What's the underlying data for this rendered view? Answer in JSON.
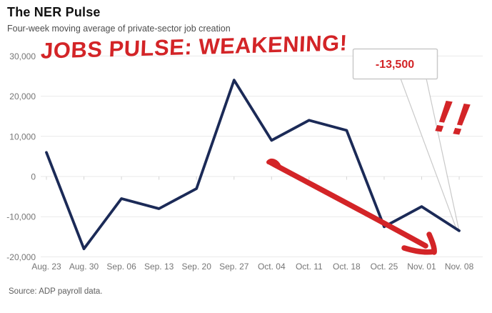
{
  "header": {
    "title": "The NER Pulse",
    "subtitle": "Four-week moving average of private-sector job creation"
  },
  "source": "Source: ADP payroll data.",
  "annotations": {
    "headline": "JOBS PULSE: WEAKENING!",
    "callout_value": "-13,500",
    "exclamation": "!!"
  },
  "colors": {
    "line": "#1b2a57",
    "annotation_red": "#d32427",
    "grid": "#e9e9e9",
    "tick": "#d5d5d5",
    "axis_text": "#767676",
    "callout_border": "#c9c9c9"
  },
  "chart_data": {
    "type": "line",
    "title": "The NER Pulse",
    "subtitle": "Four-week moving average of private-sector job creation",
    "categories": [
      "Aug. 23",
      "Aug. 30",
      "Sep. 06",
      "Sep. 13",
      "Sep. 20",
      "Sep. 27",
      "Oct. 04",
      "Oct. 11",
      "Oct. 18",
      "Oct. 25",
      "Nov. 01",
      "Nov. 08"
    ],
    "values": [
      6000,
      -18000,
      -5500,
      -8000,
      -3000,
      24000,
      9000,
      14000,
      11500,
      -12500,
      -7500,
      -13500
    ],
    "xlabel": "",
    "ylabel": "",
    "ylim": [
      -20000,
      30000
    ],
    "yticks": [
      30000,
      20000,
      10000,
      0,
      -10000,
      -20000
    ],
    "grid": true,
    "legend": "none",
    "annotation_target": {
      "category": "Nov. 08",
      "value": -13500,
      "label": "-13,500"
    }
  }
}
